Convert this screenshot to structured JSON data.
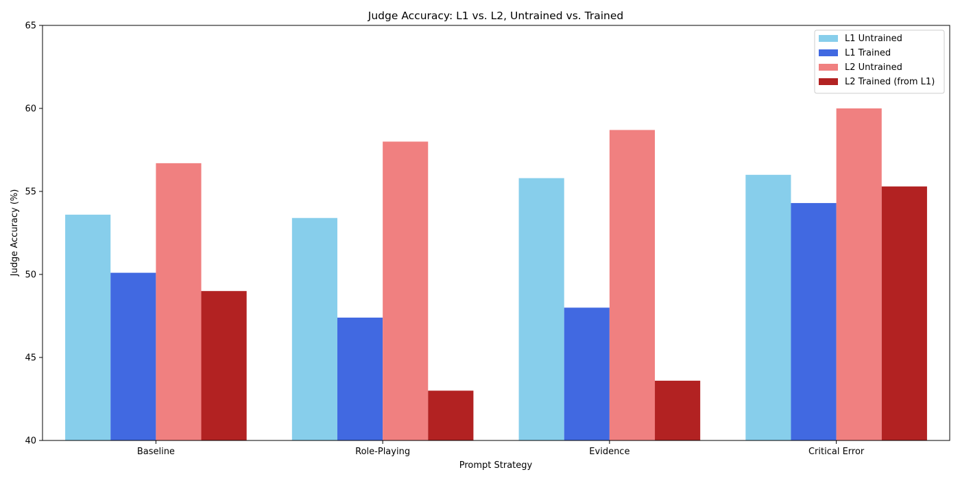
{
  "chart_data": {
    "type": "bar",
    "title": "Judge Accuracy: L1 vs. L2, Untrained vs. Trained",
    "xlabel": "Prompt Strategy",
    "ylabel": "Judge Accuracy (%)",
    "ylim": [
      40,
      65
    ],
    "yticks": [
      40,
      45,
      50,
      55,
      60,
      65
    ],
    "categories": [
      "Baseline",
      "Role-Playing",
      "Evidence",
      "Critical Error"
    ],
    "series": [
      {
        "name": "L1 Untrained",
        "color": "#87CEEB",
        "values": [
          53.6,
          53.4,
          55.8,
          56.0
        ]
      },
      {
        "name": "L1 Trained",
        "color": "#4169E1",
        "values": [
          50.1,
          47.4,
          48.0,
          54.3
        ]
      },
      {
        "name": "L2 Untrained",
        "color": "#F08080",
        "values": [
          56.7,
          58.0,
          58.7,
          60.0
        ]
      },
      {
        "name": "L2 Trained (from L1)",
        "color": "#B22222",
        "values": [
          49.0,
          43.0,
          43.6,
          55.3
        ]
      }
    ],
    "legend_position": "top-right",
    "grid": false
  }
}
